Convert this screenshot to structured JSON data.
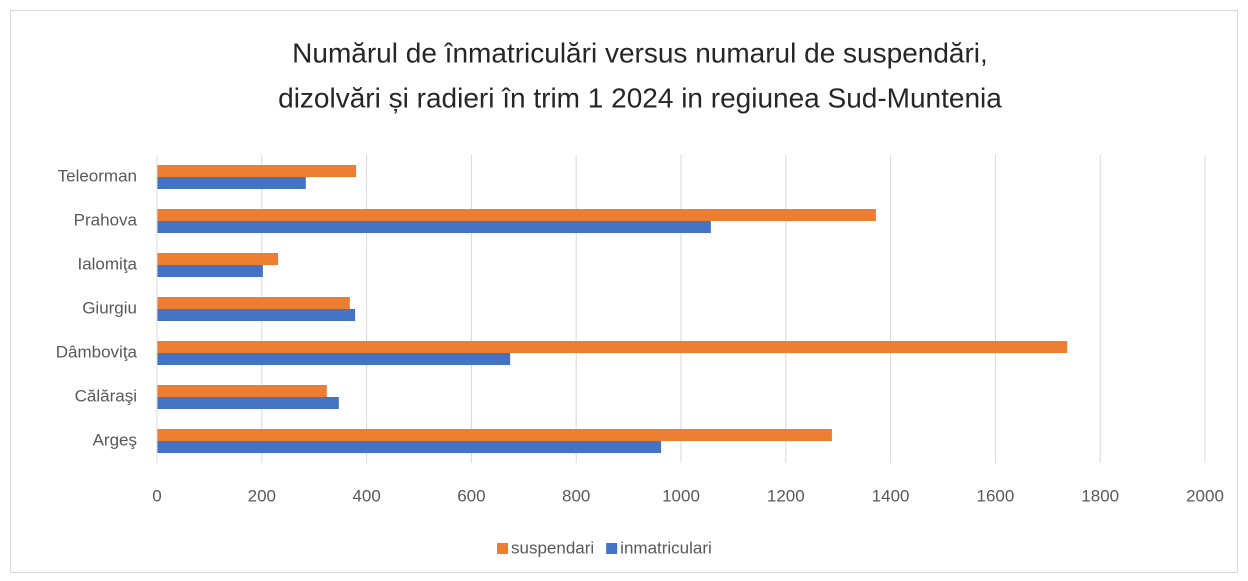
{
  "chart_data": {
    "type": "bar",
    "orientation": "horizontal",
    "title": [
      "Numărul de înmatriculări versus numarul de suspendări,",
      "dizolvări și radieri în trim 1 2024 in regiunea Sud-Muntenia"
    ],
    "categories": [
      "Argeş",
      "Călăraşi",
      "Dâmboviţa",
      "Giurgiu",
      "Ialomiţa",
      "Prahova",
      "Teleorman"
    ],
    "series": [
      {
        "name": "suspendari",
        "color": "#ed7d31",
        "values": [
          1288,
          324,
          1737,
          368,
          231,
          1372,
          380
        ]
      },
      {
        "name": "inmatriculari",
        "color": "#4472c4",
        "values": [
          962,
          347,
          674,
          378,
          202,
          1057,
          284
        ]
      }
    ],
    "xlim": [
      0,
      2000
    ],
    "xticks": [
      0,
      200,
      400,
      600,
      800,
      1000,
      1200,
      1400,
      1600,
      1800,
      2000
    ],
    "grid": true,
    "legend": "bottom"
  }
}
